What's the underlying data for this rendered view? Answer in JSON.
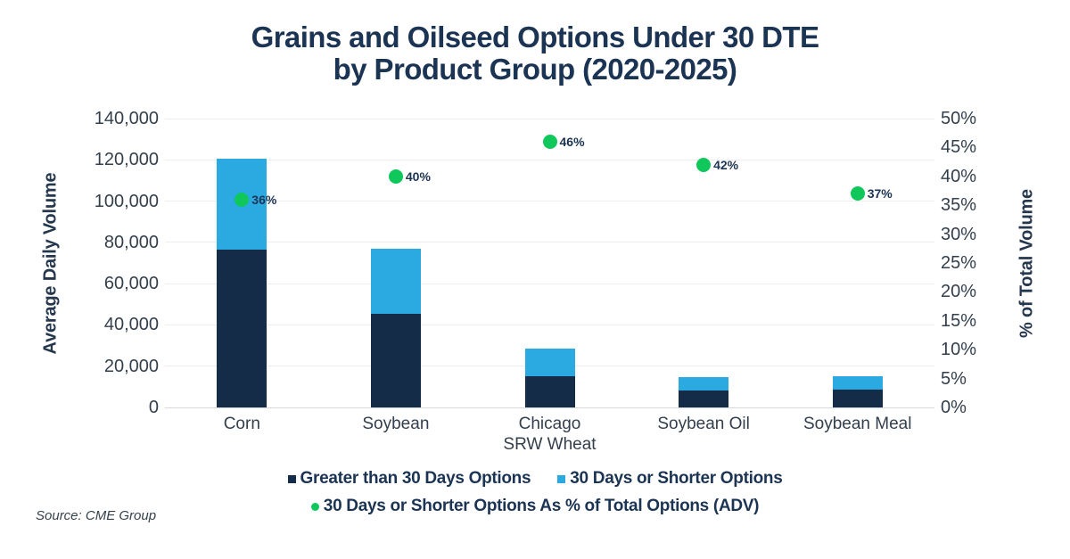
{
  "title": {
    "line1": "Grains and Oilseed Options Under 30 DTE",
    "line2": "by Product Group (2020-2025)"
  },
  "source_note": "Source: CME Group",
  "colors": {
    "title_text": "#1C3453",
    "axis_text": "#333F4C",
    "gridline": "#ECEDEF",
    "baseline": "#D7DADD",
    "bar_dark_navy": "#152C49",
    "bar_light_blue": "#2BAAE2",
    "scatter_green": "#0FC75B"
  },
  "chart_data": {
    "type": "bar",
    "subtype": "stacked-bars-with-scatter-overlay",
    "title": "Grains and Oilseed Options Under 30 DTE by Product Group (2020-2025)",
    "grid": true,
    "legend_position": "bottom",
    "categories": [
      "Corn",
      "Soybean",
      "Chicago SRW Wheat",
      "Soybean Oil",
      "Soybean Meal"
    ],
    "category_lines": [
      [
        "Corn"
      ],
      [
        "Soybean"
      ],
      [
        "Chicago",
        "SRW Wheat"
      ],
      [
        "Soybean Oil"
      ],
      [
        "Soybean Meal"
      ]
    ],
    "series": [
      {
        "name": "Greater than 30 Days Options",
        "type": "bar",
        "axis": "left",
        "color": "#152C49",
        "values": [
          76500,
          45500,
          15000,
          8000,
          8700
        ]
      },
      {
        "name": "30 Days or Shorter Options",
        "type": "bar",
        "axis": "left",
        "color": "#2BAAE2",
        "values": [
          44000,
          31500,
          13500,
          6800,
          6600
        ]
      },
      {
        "name": "30 Days or Shorter Options As % of Total Options (ADV)",
        "type": "scatter",
        "axis": "right",
        "color": "#0FC75B",
        "values": [
          36,
          40,
          46,
          42,
          37
        ],
        "point_labels": [
          "36%",
          "40%",
          "46%",
          "42%",
          "37%"
        ]
      }
    ],
    "left_axis": {
      "label": "Average Daily Volume",
      "min": 0,
      "max": 140000,
      "ticks": [
        "140,000",
        "120,000",
        "100,000",
        "80,000",
        "60,000",
        "40,000",
        "20,000",
        "0"
      ]
    },
    "right_axis": {
      "label": "% of Total Volume",
      "min": 0,
      "max": 50,
      "ticks": [
        "50%",
        "45%",
        "40%",
        "35%",
        "30%",
        "25%",
        "20%",
        "15%",
        "10%",
        "5%",
        "0%"
      ]
    }
  }
}
